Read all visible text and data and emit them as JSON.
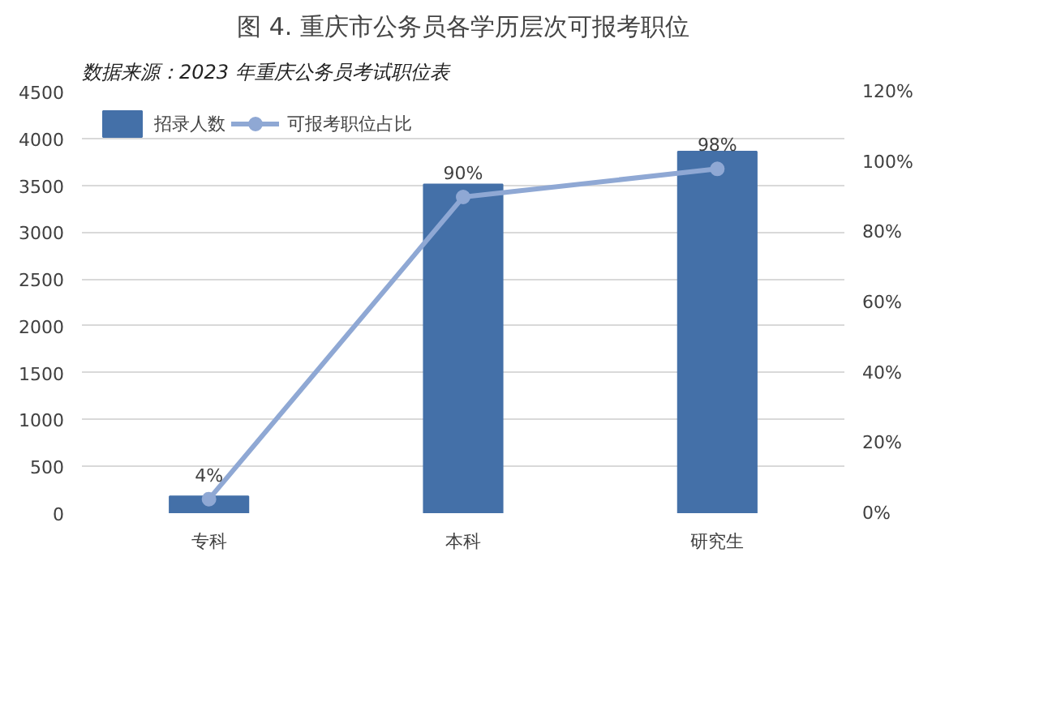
{
  "chart_data": {
    "type": "bar",
    "title": "图 4. 重庆市公务员各学历层次可报考职位",
    "categories": [
      "专科",
      "本科",
      "研究生"
    ],
    "series": [
      {
        "name": "招录人数",
        "type": "bar",
        "color": "#4470a8",
        "values": [
          180,
          3510,
          3860
        ]
      },
      {
        "name": "可报考职位占比",
        "type": "line",
        "axis": "y2",
        "color": "#8fa8d4",
        "marker": "circle",
        "values": [
          4,
          90,
          98
        ],
        "value_labels": [
          "4%",
          "90%",
          "98%"
        ]
      }
    ],
    "ylim": [
      0,
      4500
    ],
    "yticks": [
      0,
      500,
      1000,
      1500,
      2000,
      2500,
      3000,
      3500,
      4000,
      4500
    ],
    "y2lim": [
      0,
      120
    ],
    "y2ticks": [
      {
        "value": 0,
        "label": "0%"
      },
      {
        "value": 20,
        "label": "20%"
      },
      {
        "value": 40,
        "label": "40%"
      },
      {
        "value": 60,
        "label": "60%"
      },
      {
        "value": 80,
        "label": "80%"
      },
      {
        "value": 100,
        "label": "100%"
      },
      {
        "value": 120,
        "label": "120%"
      }
    ],
    "grid": "y",
    "legend": "top left",
    "annotations": [
      "数据来源：2023 年重庆公务员考试职位表"
    ]
  }
}
